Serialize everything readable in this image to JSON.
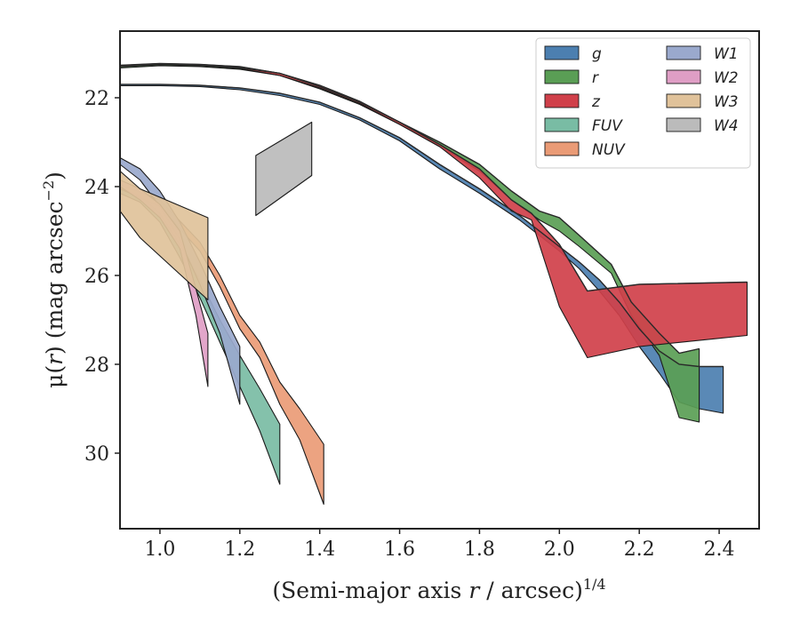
{
  "chart_data": {
    "type": "area",
    "xlabel_main": "(Semi-major axis ",
    "xlabel_var": "r",
    "xlabel_unit": " / arcsec)",
    "xlabel_sup": "1/4",
    "ylabel_main": "μ(",
    "ylabel_var": "r",
    "ylabel_unit": ") (mag arcsec",
    "ylabel_sup": "−2",
    "ylabel_close": ")",
    "xlim": [
      0.9,
      2.5
    ],
    "ylim": [
      31.7,
      20.5
    ],
    "y_inverted": true,
    "xticks": [
      1.0,
      1.2,
      1.4,
      1.6,
      1.8,
      2.0,
      2.2,
      2.4
    ],
    "xtick_labels": [
      "1.0",
      "1.2",
      "1.4",
      "1.6",
      "1.8",
      "2.0",
      "2.2",
      "2.4"
    ],
    "yticks": [
      22,
      24,
      26,
      28,
      30
    ],
    "ytick_labels": [
      "22",
      "24",
      "26",
      "28",
      "30"
    ],
    "grid": false,
    "legend_position": "top-right",
    "series": [
      {
        "name": "g",
        "color": "#4c7fb0",
        "x": [
          0.9,
          1.0,
          1.1,
          1.2,
          1.3,
          1.4,
          1.5,
          1.6,
          1.7,
          1.8,
          1.9,
          2.0,
          2.05,
          2.1,
          2.15,
          2.2,
          2.25,
          2.3,
          2.35,
          2.41
        ],
        "y_upper": [
          21.7,
          21.7,
          21.72,
          21.78,
          21.9,
          22.1,
          22.45,
          22.9,
          23.5,
          24.05,
          24.65,
          25.35,
          25.7,
          26.1,
          26.6,
          27.2,
          27.7,
          28.0,
          28.05,
          28.05
        ],
        "y_lower": [
          21.73,
          21.73,
          21.75,
          21.82,
          21.95,
          22.15,
          22.5,
          22.97,
          23.6,
          24.15,
          24.75,
          25.45,
          25.85,
          26.35,
          26.9,
          27.6,
          28.2,
          28.85,
          29.0,
          29.1
        ]
      },
      {
        "name": "r",
        "color": "#5a9e55",
        "x": [
          0.9,
          1.0,
          1.1,
          1.2,
          1.3,
          1.4,
          1.5,
          1.6,
          1.7,
          1.8,
          1.88,
          1.95,
          2.0,
          2.05,
          2.13,
          2.18,
          2.25,
          2.3,
          2.35
        ],
        "y_upper": [
          21.3,
          21.25,
          21.27,
          21.32,
          21.45,
          21.75,
          22.1,
          22.55,
          23.0,
          23.5,
          24.1,
          24.55,
          24.7,
          25.1,
          25.75,
          26.6,
          27.3,
          27.75,
          27.65
        ],
        "y_lower": [
          21.33,
          21.28,
          21.3,
          21.36,
          21.5,
          21.8,
          22.15,
          22.6,
          23.1,
          23.65,
          24.3,
          24.75,
          25.0,
          25.35,
          25.95,
          26.9,
          27.8,
          29.2,
          29.3
        ]
      },
      {
        "name": "z",
        "color": "#d0404a",
        "x": [
          0.9,
          1.0,
          1.1,
          1.2,
          1.3,
          1.4,
          1.5,
          1.6,
          1.7,
          1.8,
          1.88,
          1.93,
          2.0,
          2.07,
          2.2,
          2.47
        ],
        "y_upper": [
          21.27,
          21.23,
          21.25,
          21.3,
          21.45,
          21.72,
          22.08,
          22.55,
          23.05,
          23.6,
          24.3,
          24.6,
          25.3,
          26.35,
          26.2,
          26.15
        ],
        "y_lower": [
          21.3,
          21.26,
          21.28,
          21.34,
          21.5,
          21.78,
          22.13,
          22.6,
          23.1,
          23.8,
          24.55,
          24.75,
          26.7,
          27.85,
          27.6,
          27.35
        ]
      },
      {
        "name": "FUV",
        "color": "#79bca4",
        "x": [
          0.9,
          0.95,
          1.0,
          1.05,
          1.1,
          1.15,
          1.2,
          1.25,
          1.3
        ],
        "y_upper": [
          24.05,
          24.2,
          24.6,
          25.3,
          26.1,
          27.0,
          27.8,
          28.55,
          29.35
        ],
        "y_lower": [
          24.15,
          24.35,
          24.8,
          25.6,
          26.5,
          27.5,
          28.5,
          29.5,
          30.7
        ]
      },
      {
        "name": "NUV",
        "color": "#ea9b76",
        "x": [
          0.9,
          1.0,
          1.1,
          1.15,
          1.2,
          1.25,
          1.3,
          1.35,
          1.41
        ],
        "y_upper": [
          23.95,
          24.3,
          25.25,
          26.0,
          26.9,
          27.5,
          28.4,
          29.0,
          29.8
        ],
        "y_lower": [
          24.05,
          24.45,
          25.45,
          26.25,
          27.2,
          27.85,
          28.9,
          29.7,
          31.15
        ]
      },
      {
        "name": "W1",
        "color": "#9aa9cd",
        "x": [
          0.9,
          0.95,
          1.0,
          1.05,
          1.1,
          1.15,
          1.2
        ],
        "y_upper": [
          23.35,
          23.6,
          24.1,
          24.8,
          25.7,
          26.7,
          27.6
        ],
        "y_lower": [
          23.5,
          23.85,
          24.45,
          25.2,
          26.2,
          27.3,
          28.9
        ]
      },
      {
        "name": "W2",
        "color": "#df9ec5",
        "x": [
          0.9,
          0.95,
          1.0,
          1.05,
          1.09,
          1.12
        ],
        "y_upper": [
          23.85,
          24.05,
          24.4,
          25.0,
          26.3,
          27.3
        ],
        "y_lower": [
          24.0,
          24.3,
          24.7,
          25.4,
          26.9,
          28.5
        ]
      },
      {
        "name": "W3",
        "color": "#e0c29a",
        "x": [
          0.9,
          0.95,
          1.12
        ],
        "y_upper": [
          23.65,
          24.05,
          24.7
        ],
        "y_lower": [
          24.55,
          25.15,
          26.55
        ]
      },
      {
        "name": "W4",
        "color": "#bbbbbb",
        "x": [
          1.24,
          1.38
        ],
        "y_upper": [
          23.3,
          22.55
        ],
        "y_lower": [
          24.65,
          23.75
        ]
      }
    ],
    "legend_line_order": [
      "g",
      "r",
      "z"
    ]
  }
}
